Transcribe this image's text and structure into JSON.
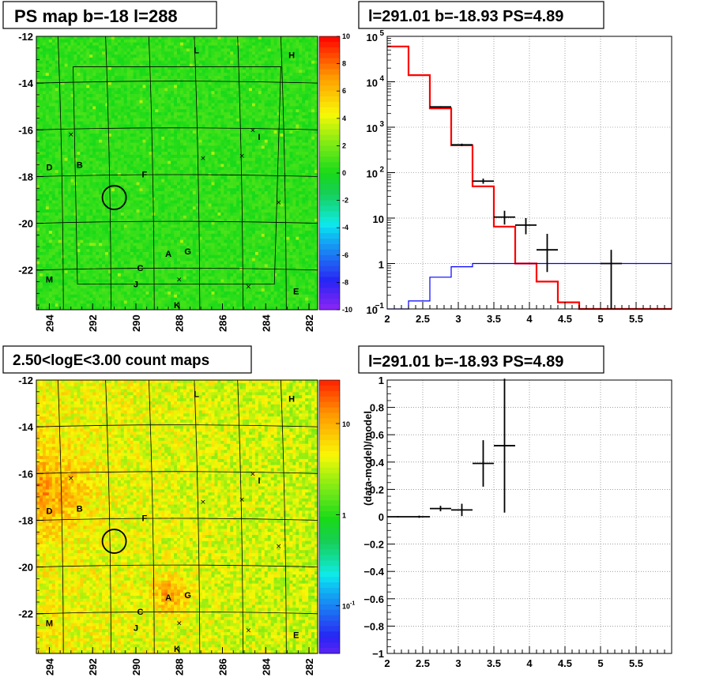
{
  "chart_data": [
    {
      "id": "ps_map",
      "type": "heatmap",
      "title": "PS map b=-18 l=288",
      "x_ticks": [
        "294",
        "292",
        "290",
        "288",
        "286",
        "284",
        "282"
      ],
      "x_values": [
        294,
        292,
        290,
        288,
        286,
        284,
        282
      ],
      "xlim": [
        294.6,
        281.6
      ],
      "y_ticks": [
        "-12",
        "-14",
        "-16",
        "-18",
        "-20",
        "-22"
      ],
      "y_values": [
        -12,
        -14,
        -16,
        -18,
        -20,
        -22
      ],
      "ylim": [
        -23.7,
        -12
      ],
      "colorbar": {
        "ticks": [
          "10",
          "8",
          "6",
          "4",
          "2",
          "0",
          "-2",
          "-4",
          "-6",
          "-8",
          "-10"
        ],
        "range": [
          -10,
          10
        ],
        "scale": "linear"
      },
      "field_value": 0.5,
      "sources": [
        {
          "label": "L",
          "l": 287.2,
          "b": -12.6
        },
        {
          "label": "H",
          "l": 282.8,
          "b": -12.8
        },
        {
          "label": "I",
          "l": 284.3,
          "b": -16.3
        },
        {
          "label": "D",
          "l": 294.0,
          "b": -17.6
        },
        {
          "label": "B",
          "l": 292.6,
          "b": -17.5
        },
        {
          "label": "F",
          "l": 289.6,
          "b": -17.9
        },
        {
          "label": "A",
          "l": 288.5,
          "b": -21.3
        },
        {
          "label": "G",
          "l": 287.6,
          "b": -21.2
        },
        {
          "label": "C",
          "l": 289.8,
          "b": -21.9
        },
        {
          "label": "J",
          "l": 290.0,
          "b": -22.6
        },
        {
          "label": "M",
          "l": 294.0,
          "b": -22.4
        },
        {
          "label": "K",
          "l": 288.1,
          "b": -23.5
        },
        {
          "label": "E",
          "l": 282.6,
          "b": -22.9
        }
      ],
      "crosses": [
        [
          293.0,
          -16.2
        ],
        [
          286.9,
          -17.2
        ],
        [
          285.1,
          -17.1
        ],
        [
          284.6,
          -16.0
        ],
        [
          283.4,
          -19.1
        ],
        [
          288.0,
          -22.4
        ],
        [
          284.8,
          -22.7
        ]
      ],
      "target": {
        "l": 291.0,
        "b": -18.9
      }
    },
    {
      "id": "spectrum",
      "type": "line",
      "title": "l=291.01 b=-18.93 PS=4.89",
      "x_ticks": [
        "2",
        "2.5",
        "3",
        "3.5",
        "4",
        "4.5",
        "5",
        "5.5"
      ],
      "xlim": [
        2.0,
        6.0
      ],
      "y_scale": "log",
      "ylim": [
        0.1,
        100000
      ],
      "y_ticks": [
        {
          "v": 100000,
          "base": "10",
          "exp": "5"
        },
        {
          "v": 10000,
          "base": "10",
          "exp": "4"
        },
        {
          "v": 1000,
          "base": "10",
          "exp": "3"
        },
        {
          "v": 100,
          "base": "10",
          "exp": "2"
        },
        {
          "v": 10,
          "base": "10",
          "exp": ""
        },
        {
          "v": 1,
          "base": "1",
          "exp": ""
        },
        {
          "v": 0.1,
          "base": "10",
          "exp": "−1"
        }
      ],
      "series": [
        {
          "color": "#ff0000",
          "edges": [
            2.0,
            2.3,
            2.6,
            2.9,
            3.2,
            3.5,
            3.8,
            4.1,
            4.4,
            4.7,
            5.0,
            6.0
          ],
          "values": [
            60000,
            14000,
            2600,
            400,
            50,
            6.5,
            1.0,
            0.4,
            0.14,
            0.1,
            0.1
          ]
        },
        {
          "color": "#0000ff",
          "edges": [
            2.0,
            2.3,
            2.6,
            2.9,
            3.2,
            3.5,
            3.8,
            4.1,
            4.4,
            4.7,
            5.0,
            6.0
          ],
          "values": [
            0.1,
            0.15,
            0.5,
            0.85,
            1.0,
            1.0,
            1.0,
            1.0,
            1.0,
            1.0,
            1.0
          ]
        },
        {
          "color": "#000000",
          "points": [
            {
              "x": 2.75,
              "y": 2800,
              "xerr": 0.15,
              "lo": 2700,
              "hi": 2900
            },
            {
              "x": 3.05,
              "y": 410,
              "xerr": 0.15,
              "lo": 385,
              "hi": 435
            },
            {
              "x": 3.35,
              "y": 65,
              "xerr": 0.15,
              "lo": 57,
              "hi": 74
            },
            {
              "x": 3.65,
              "y": 10.5,
              "xerr": 0.15,
              "lo": 7.2,
              "hi": 14.5
            },
            {
              "x": 3.95,
              "y": 7,
              "xerr": 0.15,
              "lo": 4.4,
              "hi": 10
            },
            {
              "x": 4.25,
              "y": 2,
              "xerr": 0.15,
              "lo": 0.65,
              "hi": 4.5
            },
            {
              "x": 5.15,
              "y": 1,
              "xerr": 0.15,
              "lo": 0.1,
              "hi": 2.0
            }
          ]
        }
      ]
    },
    {
      "id": "count_map",
      "type": "heatmap",
      "title": "2.50<logE<3.00 count maps",
      "x_ticks": [
        "294",
        "292",
        "290",
        "288",
        "286",
        "284",
        "282"
      ],
      "x_values": [
        294,
        292,
        290,
        288,
        286,
        284,
        282
      ],
      "xlim": [
        294.6,
        281.6
      ],
      "y_ticks": [
        "-12",
        "-14",
        "-16",
        "-18",
        "-20",
        "-22"
      ],
      "y_values": [
        -12,
        -14,
        -16,
        -18,
        -20,
        -22
      ],
      "ylim": [
        -23.7,
        -12
      ],
      "colorbar": {
        "scale": "log",
        "range": [
          0.03,
          30
        ],
        "ticks": [
          {
            "v": 10,
            "base": "10",
            "exp": ""
          },
          {
            "v": 1,
            "base": "1",
            "exp": ""
          },
          {
            "v": 0.1,
            "base": "10",
            "exp": "-1"
          }
        ]
      },
      "sources": [
        {
          "label": "L",
          "l": 287.2,
          "b": -12.6
        },
        {
          "label": "H",
          "l": 282.8,
          "b": -12.8
        },
        {
          "label": "I",
          "l": 284.3,
          "b": -16.3
        },
        {
          "label": "D",
          "l": 294.0,
          "b": -17.6
        },
        {
          "label": "B",
          "l": 292.6,
          "b": -17.5
        },
        {
          "label": "F",
          "l": 289.6,
          "b": -17.9
        },
        {
          "label": "A",
          "l": 288.5,
          "b": -21.3
        },
        {
          "label": "G",
          "l": 287.6,
          "b": -21.2
        },
        {
          "label": "C",
          "l": 289.8,
          "b": -21.9
        },
        {
          "label": "J",
          "l": 290.0,
          "b": -22.6
        },
        {
          "label": "M",
          "l": 294.0,
          "b": -22.4
        },
        {
          "label": "K",
          "l": 288.1,
          "b": -23.5
        },
        {
          "label": "E",
          "l": 282.6,
          "b": -22.9
        }
      ],
      "crosses": [
        [
          293.0,
          -16.2
        ],
        [
          286.9,
          -17.2
        ],
        [
          285.1,
          -17.1
        ],
        [
          284.6,
          -16.0
        ],
        [
          283.4,
          -19.1
        ],
        [
          288.0,
          -22.4
        ],
        [
          284.8,
          -22.7
        ]
      ],
      "target": {
        "l": 291.0,
        "b": -18.9
      }
    },
    {
      "id": "residual",
      "type": "scatter",
      "title": "l=291.01 b=-18.93 PS=4.89",
      "ylabel": "(data-model)/model",
      "x_ticks": [
        "2",
        "2.5",
        "3",
        "3.5",
        "4",
        "4.5",
        "5",
        "5.5"
      ],
      "xlim": [
        2.0,
        6.0
      ],
      "y_ticks": [
        "1",
        "0.8",
        "0.6",
        "0.4",
        "0.2",
        "0",
        "−0.2",
        "−0.4",
        "−0.6",
        "−0.8",
        "−1"
      ],
      "ylim": [
        -1,
        1
      ],
      "points": [
        {
          "x": 2.15,
          "y": 0.0,
          "xerr": 0.15,
          "yerr": 0.005
        },
        {
          "x": 2.45,
          "y": 0.0,
          "xerr": 0.15,
          "yerr": 0.008
        },
        {
          "x": 2.75,
          "y": 0.06,
          "xerr": 0.15,
          "yerr": 0.02
        },
        {
          "x": 3.05,
          "y": 0.05,
          "xerr": 0.15,
          "yerr": 0.045
        },
        {
          "x": 3.35,
          "y": 0.39,
          "xerr": 0.15,
          "yerr": 0.17
        },
        {
          "x": 3.65,
          "y": 0.52,
          "xerr": 0.15,
          "yerr": 0.49
        }
      ]
    }
  ]
}
